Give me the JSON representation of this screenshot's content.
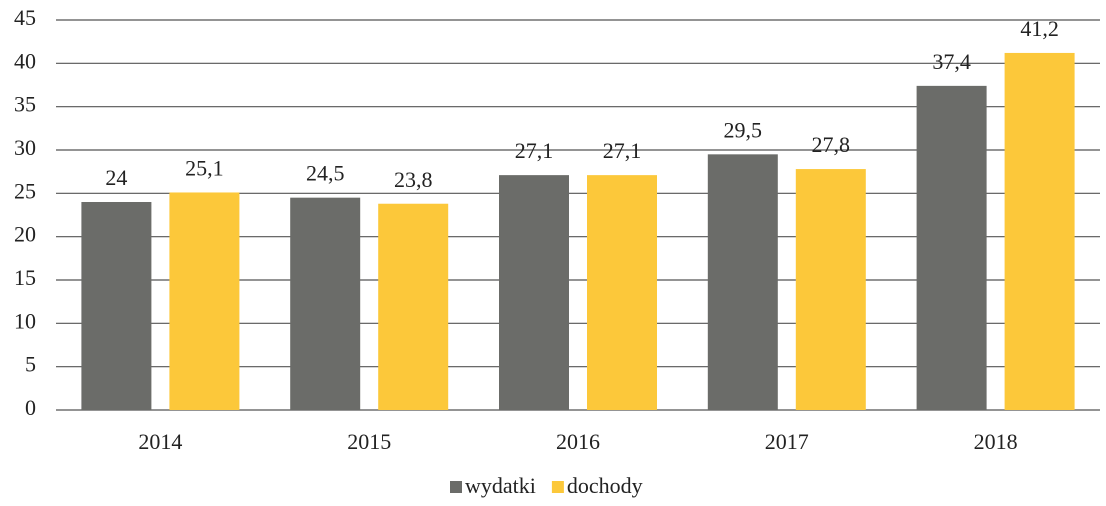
{
  "chart_data": {
    "type": "bar",
    "categories": [
      "2014",
      "2015",
      "2016",
      "2017",
      "2018"
    ],
    "series": [
      {
        "name": "wydatki",
        "color": "#6b6c69",
        "values": [
          24,
          24.5,
          27.1,
          29.5,
          37.4
        ],
        "value_labels": [
          "24",
          "24,5",
          "27,1",
          "29,5",
          "37,4"
        ]
      },
      {
        "name": "dochody",
        "color": "#fcc83a",
        "values": [
          25.1,
          23.8,
          27.1,
          27.8,
          41.2
        ],
        "value_labels": [
          "25,1",
          "23,8",
          "27,1",
          "27,8",
          "41,2"
        ]
      }
    ],
    "ylim": [
      0,
      45
    ],
    "yticks": [
      0,
      5,
      10,
      15,
      20,
      25,
      30,
      35,
      40,
      45
    ],
    "grid": true,
    "legend": "bottom"
  }
}
